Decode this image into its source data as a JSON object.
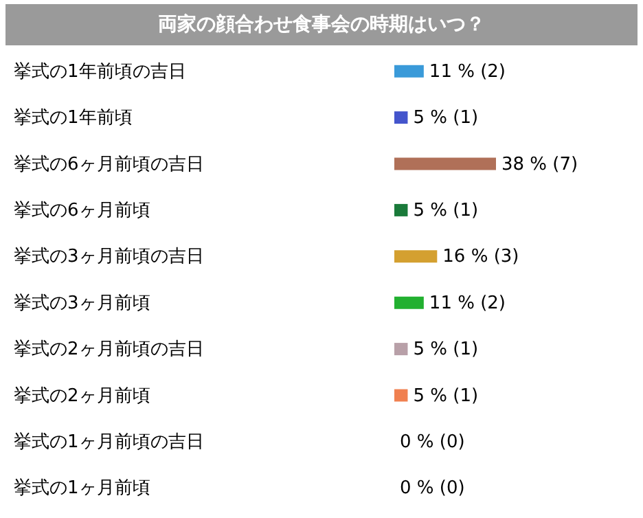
{
  "chart_data": {
    "type": "bar",
    "orientation": "horizontal",
    "title": "両家の顔合わせ食事会の時期はいつ？",
    "categories": [
      "挙式の1年前頃の吉日",
      "挙式の1年前頃",
      "挙式の6ヶ月前頃の吉日",
      "挙式の6ヶ月前頃",
      "挙式の3ヶ月前頃の吉日",
      "挙式の3ヶ月前頃",
      "挙式の2ヶ月前頃の吉日",
      "挙式の2ヶ月前頃",
      "挙式の1ヶ月前頃の吉日",
      "挙式の1ヶ月前頃"
    ],
    "values": [
      11,
      5,
      38,
      5,
      16,
      11,
      5,
      5,
      0,
      0
    ],
    "value_labels": [
      "11 % (2)",
      "5 % (1)",
      "38 % (7)",
      "5 % (1)",
      "16 % (3)",
      "11 % (2)",
      "5 % (1)",
      "5 % (1)",
      "0 % (0)",
      "0 % (0)"
    ],
    "colors": [
      "#3a9ad9",
      "#4455cc",
      "#b07058",
      "#1a7a3a",
      "#d4a030",
      "#22b030",
      "#b8a0a8",
      "#f08050",
      null,
      null
    ]
  }
}
